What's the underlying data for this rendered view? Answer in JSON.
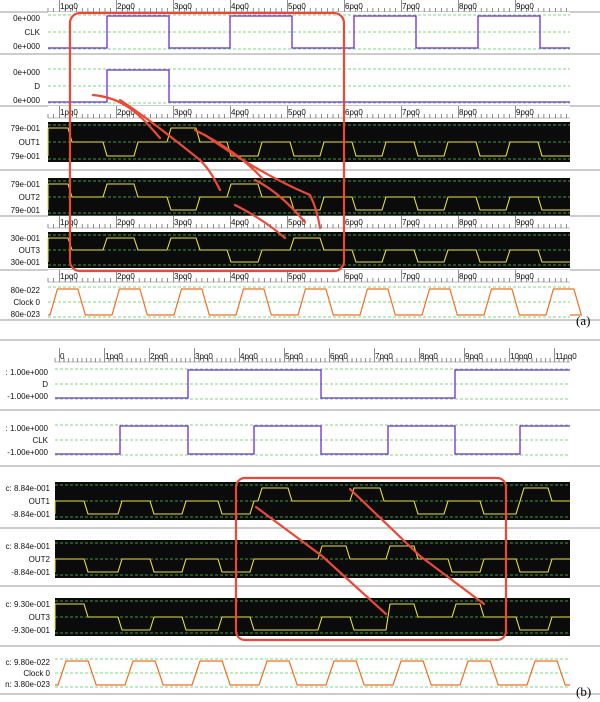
{
  "panels": [
    {
      "id": "a",
      "label": "(a)",
      "ruler_labels": [
        "1pq0",
        "2pq0",
        "3pq0",
        "4pq0",
        "5pq0",
        "6pq0",
        "7pq0",
        "8pq0",
        "9pq0",
        "1pq0",
        "1pq0"
      ],
      "traces": [
        {
          "id": "clk",
          "type": "digital",
          "color": "#6a2be0",
          "bg": "light",
          "labels": [
            "0e+000",
            "CLK",
            "0e+000"
          ],
          "edges": [
            0,
            0.5,
            1,
            1.5,
            2,
            2.5,
            3,
            3.5,
            4,
            4.5,
            5,
            5.5,
            6,
            6.5,
            7,
            7.5,
            8,
            8.5,
            9
          ],
          "start": 0
        },
        {
          "id": "d",
          "type": "digital",
          "color": "#6a2be0",
          "bg": "light",
          "labels": [
            "0e+000",
            "D",
            "0e+000"
          ],
          "edges": [
            0.5,
            1
          ],
          "start": 0
        },
        {
          "id": "out1",
          "type": "analog",
          "color": "#e8e040",
          "bg": "dark",
          "labels": [
            "79e-001",
            "OUT1",
            "79e-001"
          ]
        },
        {
          "id": "out2",
          "type": "analog",
          "color": "#e8e040",
          "bg": "dark",
          "labels": [
            "79e-001",
            "OUT2",
            "79e-001"
          ]
        },
        {
          "id": "out3",
          "type": "analog",
          "color": "#e8e040",
          "bg": "dark",
          "labels": [
            "30e-001",
            "OUT3",
            "30e-001"
          ]
        },
        {
          "id": "clock0",
          "type": "clock",
          "color": "#f07020",
          "bg": "light",
          "labels": [
            "80e-022",
            "Clock 0",
            "80e-023"
          ]
        }
      ]
    },
    {
      "id": "b",
      "label": "(b)",
      "ruler_labels": [
        "0",
        "1pq0",
        "2pq0",
        "3pq0",
        "4pq0",
        "5pq0",
        "6pq0",
        "7pq0",
        "8pq0",
        "9pq0",
        "10pq0",
        "11pq0"
      ],
      "traces": [
        {
          "id": "d",
          "type": "digital",
          "color": "#6a2be0",
          "bg": "light",
          "labels": [
            ": 1.00e+000",
            "D",
            "-1.00e+000"
          ]
        },
        {
          "id": "clk",
          "type": "digital",
          "color": "#6a2be0",
          "bg": "light",
          "labels": [
            ": 1.00e+000",
            "CLK",
            "-1.00e+000"
          ]
        },
        {
          "id": "out1",
          "type": "analog",
          "color": "#e8e040",
          "bg": "dark",
          "labels": [
            "c: 8.84e-001",
            "OUT1",
            "-8.84e-001"
          ]
        },
        {
          "id": "out2",
          "type": "analog",
          "color": "#e8e040",
          "bg": "dark",
          "labels": [
            "c: 8.84e-001",
            "OUT2",
            "-8.84e-001"
          ]
        },
        {
          "id": "out3",
          "type": "analog",
          "color": "#e8e040",
          "bg": "dark",
          "labels": [
            "c: 9.30e-001",
            "OUT3",
            "-9.30e-001"
          ]
        },
        {
          "id": "clock0",
          "type": "clock",
          "color": "#f07020",
          "bg": "light",
          "labels": [
            "c: 9.80e-022",
            "Clock 0",
            "n: 3.80e-023"
          ]
        }
      ]
    }
  ],
  "colors": {
    "highlight": "#ea4a35",
    "grid": "#55cc55",
    "dark_bg": "#0b0b0b",
    "analog": "#e8e040",
    "digital": "#6a2be0",
    "clock": "#f07020"
  }
}
